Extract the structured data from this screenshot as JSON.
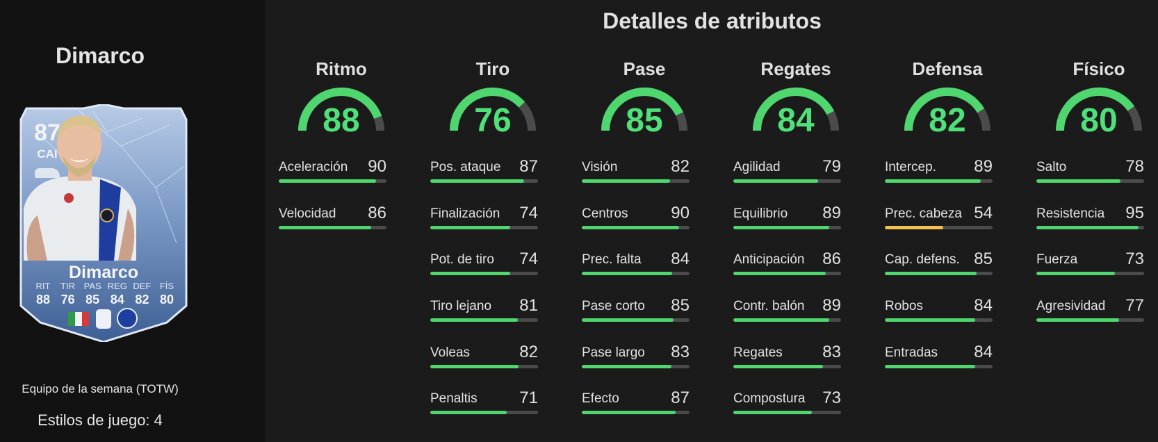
{
  "player": {
    "name": "Dimarco",
    "card": {
      "rating": "87",
      "position": "CAI",
      "name": "Dimarco",
      "stats": [
        {
          "label": "RIT",
          "value": "88"
        },
        {
          "label": "TIR",
          "value": "76"
        },
        {
          "label": "PAS",
          "value": "85"
        },
        {
          "label": "REG",
          "value": "84"
        },
        {
          "label": "DEF",
          "value": "82"
        },
        {
          "label": "FÍS",
          "value": "80"
        }
      ],
      "nation_flag_colors": [
        "#2f9a4a",
        "#f3f3f3",
        "#d83a3a"
      ],
      "icons": [
        "nation-flag-icon",
        "league-badge-icon",
        "club-badge-icon",
        "boot-icon"
      ]
    },
    "edition": "Equipo de la semana (TOTW)",
    "playstyles": "Estilos de juego: 4"
  },
  "details": {
    "title": "Detalles de atributos",
    "colors": {
      "high": "#4fd66f",
      "mid": "#f2c14e",
      "track": "#4b4b4b"
    },
    "categories": [
      {
        "name": "Ritmo",
        "value": 88,
        "attributes": [
          {
            "name": "Aceleración",
            "value": 90
          },
          {
            "name": "Velocidad",
            "value": 86
          }
        ]
      },
      {
        "name": "Tiro",
        "value": 76,
        "attributes": [
          {
            "name": "Pos. ataque",
            "value": 87
          },
          {
            "name": "Finalización",
            "value": 74
          },
          {
            "name": "Pot. de tiro",
            "value": 74
          },
          {
            "name": "Tiro lejano",
            "value": 81
          },
          {
            "name": "Voleas",
            "value": 82
          },
          {
            "name": "Penaltis",
            "value": 71
          }
        ]
      },
      {
        "name": "Pase",
        "value": 85,
        "attributes": [
          {
            "name": "Visión",
            "value": 82
          },
          {
            "name": "Centros",
            "value": 90
          },
          {
            "name": "Prec. falta",
            "value": 84
          },
          {
            "name": "Pase corto",
            "value": 85
          },
          {
            "name": "Pase largo",
            "value": 83
          },
          {
            "name": "Efecto",
            "value": 87
          }
        ]
      },
      {
        "name": "Regates",
        "value": 84,
        "attributes": [
          {
            "name": "Agilidad",
            "value": 79
          },
          {
            "name": "Equilibrio",
            "value": 89
          },
          {
            "name": "Anticipación",
            "value": 86
          },
          {
            "name": "Contr. balón",
            "value": 89
          },
          {
            "name": "Regates",
            "value": 83
          },
          {
            "name": "Compostura",
            "value": 73
          }
        ]
      },
      {
        "name": "Defensa",
        "value": 82,
        "attributes": [
          {
            "name": "Intercep.",
            "value": 89
          },
          {
            "name": "Prec. cabeza",
            "value": 54
          },
          {
            "name": "Cap. defens.",
            "value": 85
          },
          {
            "name": "Robos",
            "value": 84
          },
          {
            "name": "Entradas",
            "value": 84
          }
        ]
      },
      {
        "name": "Físico",
        "value": 80,
        "attributes": [
          {
            "name": "Salto",
            "value": 78
          },
          {
            "name": "Resistencia",
            "value": 95
          },
          {
            "name": "Fuerza",
            "value": 73
          },
          {
            "name": "Agresividad",
            "value": 77
          }
        ]
      }
    ]
  }
}
